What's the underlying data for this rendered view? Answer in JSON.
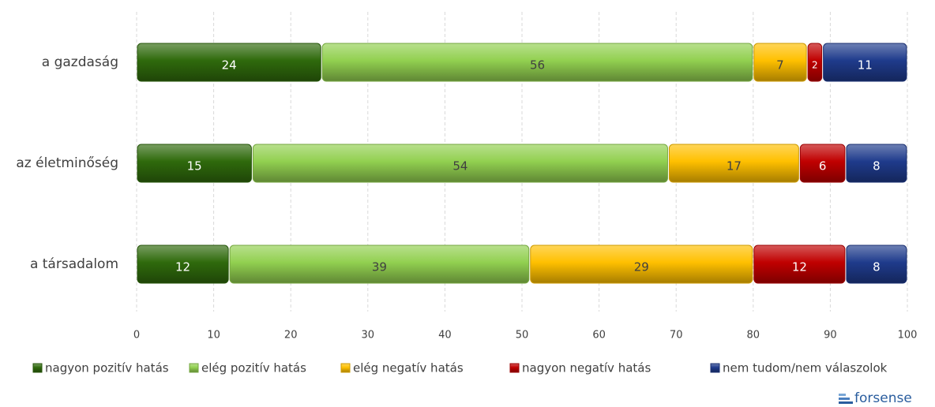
{
  "chart_data": {
    "type": "bar",
    "orientation": "horizontal",
    "stacked": true,
    "categories": [
      "a gazdaság",
      "az életminőség",
      "a társadalom"
    ],
    "series": [
      {
        "name": "nagyon pozitív hatás",
        "color": "#2f6a0c",
        "values": [
          24,
          15,
          12
        ]
      },
      {
        "name": "elég pozitív hatás",
        "color": "#92d050",
        "values": [
          56,
          54,
          39
        ]
      },
      {
        "name": "elég negatív hatás",
        "color": "#ffc000",
        "values": [
          7,
          17,
          29
        ]
      },
      {
        "name": "nagyon negatív hatás",
        "color": "#c00000",
        "values": [
          2,
          6,
          12
        ]
      },
      {
        "name": "nem tudom/nem válaszolok",
        "color": "#1f3b8c",
        "values": [
          11,
          8,
          8
        ]
      }
    ],
    "xlim": [
      0,
      100
    ],
    "xticks": [
      0,
      10,
      20,
      30,
      40,
      50,
      60,
      70,
      80,
      90,
      100
    ],
    "grid": true,
    "legend": "bottom"
  },
  "logo": "forsense"
}
